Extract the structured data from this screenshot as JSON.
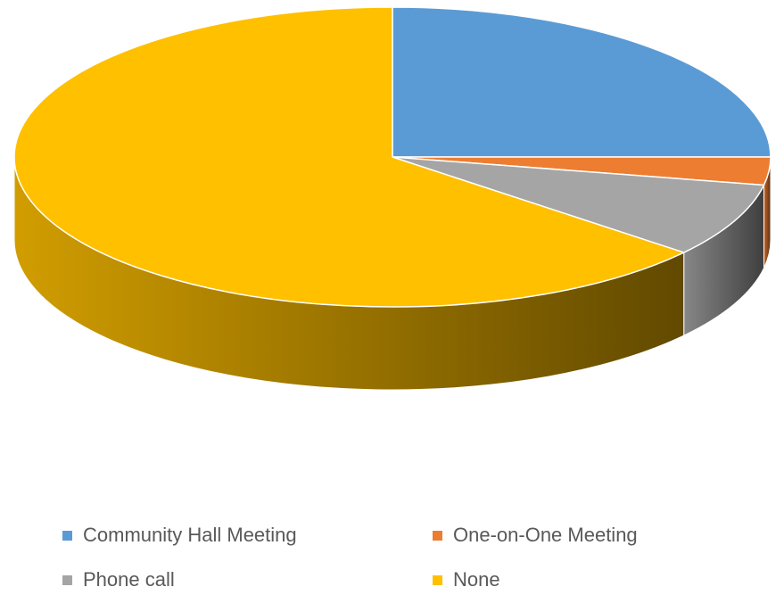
{
  "chart_data": {
    "type": "pie",
    "style": "3d",
    "legend_position": "bottom",
    "categories": [
      "Community Hall Meeting",
      "One-on-One Meeting",
      "Phone call",
      "None"
    ],
    "values": [
      25,
      3,
      8,
      64
    ],
    "colors": [
      "#5B9BD5",
      "#ED7D31",
      "#A5A5A5",
      "#FFC000"
    ],
    "title": ""
  }
}
